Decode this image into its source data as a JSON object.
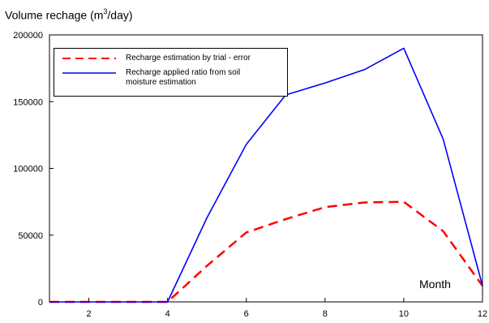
{
  "chart_data": {
    "type": "line",
    "title": "",
    "ylabel": {
      "prefix": "Volume rechage (m",
      "superscript": "3",
      "suffix": "/day)"
    },
    "xlabel": "Month",
    "xlim": [
      1,
      12
    ],
    "ylim": [
      0,
      200000
    ],
    "xticks": [
      2,
      4,
      6,
      8,
      10,
      12
    ],
    "yticks": [
      0,
      50000,
      100000,
      150000,
      200000
    ],
    "grid": false,
    "legend_position": "top-left",
    "x": [
      1,
      2,
      3,
      4,
      5,
      6,
      7,
      8,
      9,
      10,
      11,
      12
    ],
    "series": [
      {
        "name": "Recharge estimation by trial - error",
        "color": "#ff0000",
        "style": "dashed",
        "values": [
          0,
          0,
          0,
          0,
          27000,
          52000,
          62000,
          71000,
          74500,
          75000,
          53000,
          12000
        ]
      },
      {
        "name": "Recharge applied ratio from soil moisture estimation",
        "name_lines": [
          "Recharge applied ratio from soil",
          "moisture estimation"
        ],
        "color": "#0000ff",
        "style": "solid",
        "values": [
          0,
          0,
          0,
          0,
          63000,
          118000,
          155000,
          164000,
          174000,
          190000,
          122000,
          12000
        ]
      }
    ]
  }
}
